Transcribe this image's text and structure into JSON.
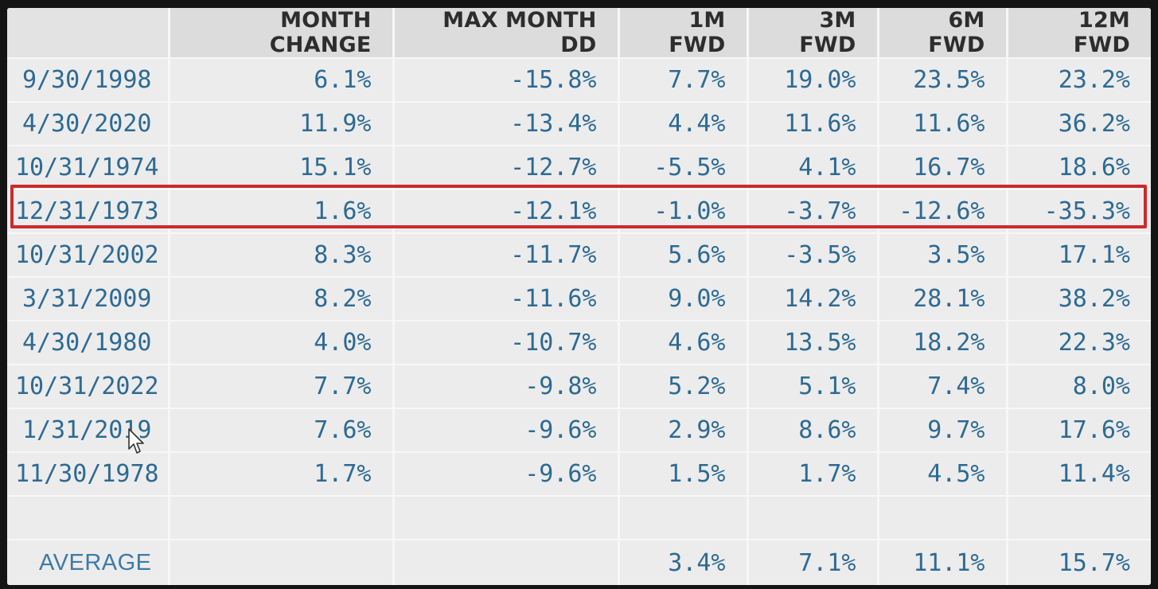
{
  "chart_data": {
    "type": "table",
    "columns": [
      "",
      "MONTH CHANGE",
      "MAX MONTH DD",
      "1M FWD",
      "3M FWD",
      "6M FWD",
      "12M FWD"
    ],
    "rows": [
      [
        "9/30/1998",
        "6.1%",
        "-15.8%",
        "7.7%",
        "19.0%",
        "23.5%",
        "23.2%"
      ],
      [
        "4/30/2020",
        "11.9%",
        "-13.4%",
        "4.4%",
        "11.6%",
        "11.6%",
        "36.2%"
      ],
      [
        "10/31/1974",
        "15.1%",
        "-12.7%",
        "-5.5%",
        "4.1%",
        "16.7%",
        "18.6%"
      ],
      [
        "12/31/1973",
        "1.6%",
        "-12.1%",
        "-1.0%",
        "-3.7%",
        "-12.6%",
        "-35.3%"
      ],
      [
        "10/31/2002",
        "8.3%",
        "-11.7%",
        "5.6%",
        "-3.5%",
        "3.5%",
        "17.1%"
      ],
      [
        "3/31/2009",
        "8.2%",
        "-11.6%",
        "9.0%",
        "14.2%",
        "28.1%",
        "38.2%"
      ],
      [
        "4/30/1980",
        "4.0%",
        "-10.7%",
        "4.6%",
        "13.5%",
        "18.2%",
        "22.3%"
      ],
      [
        "10/31/2022",
        "7.7%",
        "-9.8%",
        "5.2%",
        "5.1%",
        "7.4%",
        "8.0%"
      ],
      [
        "1/31/2019",
        "7.6%",
        "-9.6%",
        "2.9%",
        "8.6%",
        "9.7%",
        "17.6%"
      ],
      [
        "11/30/1978",
        "1.7%",
        "-9.6%",
        "1.5%",
        "1.7%",
        "4.5%",
        "11.4%"
      ]
    ],
    "average": [
      "AVERAGE",
      "",
      "",
      "3.4%",
      "7.1%",
      "11.1%",
      "15.7%"
    ],
    "highlighted_row": 3
  },
  "colors": {
    "cell_text": "#2d6a93",
    "header_text": "#2d2d2d",
    "highlight_border": "#cc2a2a",
    "background": "#e9e9e9"
  },
  "icons": {
    "cursor": "arrow-cursor-icon"
  }
}
